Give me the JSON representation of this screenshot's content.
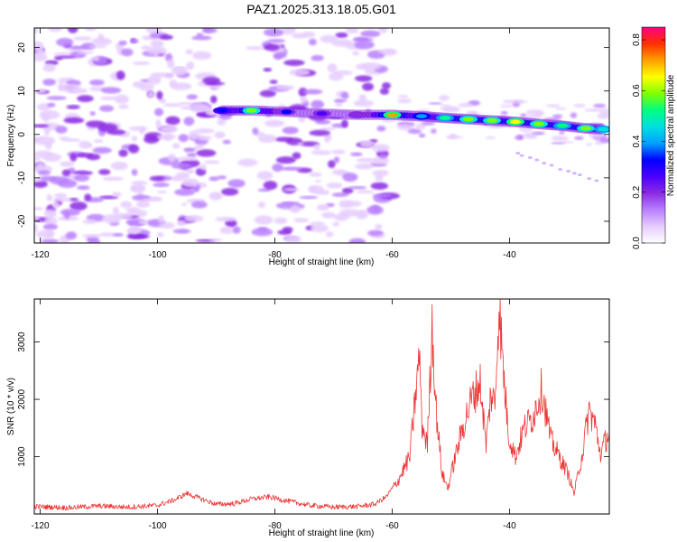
{
  "title": "PAZ1.2025.313.18.05.G01",
  "colors": {
    "snr_line": "#ee3333",
    "axis": "#000000",
    "colormap": [
      "#ffffff",
      "#e6ccff",
      "#b980ff",
      "#8a2be2",
      "#4b00ff",
      "#0000ff",
      "#00a0ff",
      "#00e0e0",
      "#00ff80",
      "#80ff00",
      "#ffff00",
      "#ffa000",
      "#ff3000",
      "#ff0080"
    ]
  },
  "chart_data": [
    {
      "type": "heatmap",
      "xlabel": "Height of straight line (km)",
      "ylabel": "Frequency (Hz)",
      "xlim": [
        -121,
        -23
      ],
      "ylim": [
        -25,
        24.5
      ],
      "x_ticks": [
        -120,
        -100,
        -80,
        -60,
        -40
      ],
      "y_ticks": [
        -20,
        -10,
        0,
        10,
        20
      ],
      "colorbar": {
        "label": "Normalized spectral amplitude",
        "range": [
          0,
          0.85
        ],
        "ticks": [
          0.0,
          0.2,
          0.4,
          0.6,
          0.8
        ],
        "tick_labels": [
          "0.0",
          "0.2",
          "0.4",
          "0.6",
          "0.8"
        ]
      },
      "signal_track": [
        {
          "x": -89,
          "y": 5.5,
          "amp": 0.34
        },
        {
          "x": -84,
          "y": 5.5,
          "amp": 0.62
        },
        {
          "x": -78,
          "y": 5.2,
          "amp": 0.3
        },
        {
          "x": -72,
          "y": 4.8,
          "amp": 0.28
        },
        {
          "x": -66,
          "y": 4.5,
          "amp": 0.22
        },
        {
          "x": -60,
          "y": 4.5,
          "amp": 0.7
        },
        {
          "x": -55,
          "y": 4.2,
          "amp": 0.4
        },
        {
          "x": -51,
          "y": 3.8,
          "amp": 0.55
        },
        {
          "x": -47,
          "y": 3.5,
          "amp": 0.62
        },
        {
          "x": -43,
          "y": 3.2,
          "amp": 0.58
        },
        {
          "x": -39,
          "y": 2.9,
          "amp": 0.66
        },
        {
          "x": -35,
          "y": 2.4,
          "amp": 0.62
        },
        {
          "x": -31,
          "y": 2.0,
          "amp": 0.52
        },
        {
          "x": -27,
          "y": 1.4,
          "amp": 0.6
        },
        {
          "x": -24,
          "y": 1.2,
          "amp": 0.48
        }
      ]
    },
    {
      "type": "line",
      "xlabel": "Height of straight line (km)",
      "ylabel": "SNR (10 * v/v)",
      "xlim": [
        -121,
        -23
      ],
      "ylim": [
        0,
        3750
      ],
      "x_ticks": [
        -120,
        -100,
        -80,
        -60,
        -40
      ],
      "y_ticks": [
        1000,
        2000,
        3000
      ],
      "series": [
        {
          "name": "SNR",
          "points": [
            [
              -121,
              130
            ],
            [
              -115,
              110
            ],
            [
              -110,
              140
            ],
            [
              -105,
              120
            ],
            [
              -100,
              150
            ],
            [
              -97,
              250
            ],
            [
              -95,
              360
            ],
            [
              -93,
              280
            ],
            [
              -90,
              170
            ],
            [
              -87,
              180
            ],
            [
              -84,
              260
            ],
            [
              -81,
              300
            ],
            [
              -78,
              230
            ],
            [
              -74,
              150
            ],
            [
              -70,
              120
            ],
            [
              -66,
              130
            ],
            [
              -63,
              170
            ],
            [
              -61,
              300
            ],
            [
              -59,
              580
            ],
            [
              -57,
              1000
            ],
            [
              -56,
              2100
            ],
            [
              -55.3,
              2800
            ],
            [
              -55,
              1600
            ],
            [
              -54,
              1200
            ],
            [
              -53.2,
              3300
            ],
            [
              -52.5,
              1800
            ],
            [
              -51.5,
              700
            ],
            [
              -50.5,
              450
            ],
            [
              -49.5,
              900
            ],
            [
              -48,
              1500
            ],
            [
              -46.5,
              2000
            ],
            [
              -45,
              2300
            ],
            [
              -44,
              1200
            ],
            [
              -43.2,
              2100
            ],
            [
              -42.5,
              1900
            ],
            [
              -41.8,
              3700
            ],
            [
              -41.2,
              2700
            ],
            [
              -40.2,
              1400
            ],
            [
              -39,
              1000
            ],
            [
              -37.5,
              1500
            ],
            [
              -36,
              1700
            ],
            [
              -34.5,
              2200
            ],
            [
              -33,
              1300
            ],
            [
              -31.5,
              1000
            ],
            [
              -30,
              700
            ],
            [
              -29,
              350
            ],
            [
              -27.5,
              1100
            ],
            [
              -26.5,
              1800
            ],
            [
              -25.5,
              1600
            ],
            [
              -24.5,
              1050
            ],
            [
              -23,
              1450
            ]
          ]
        }
      ]
    }
  ]
}
